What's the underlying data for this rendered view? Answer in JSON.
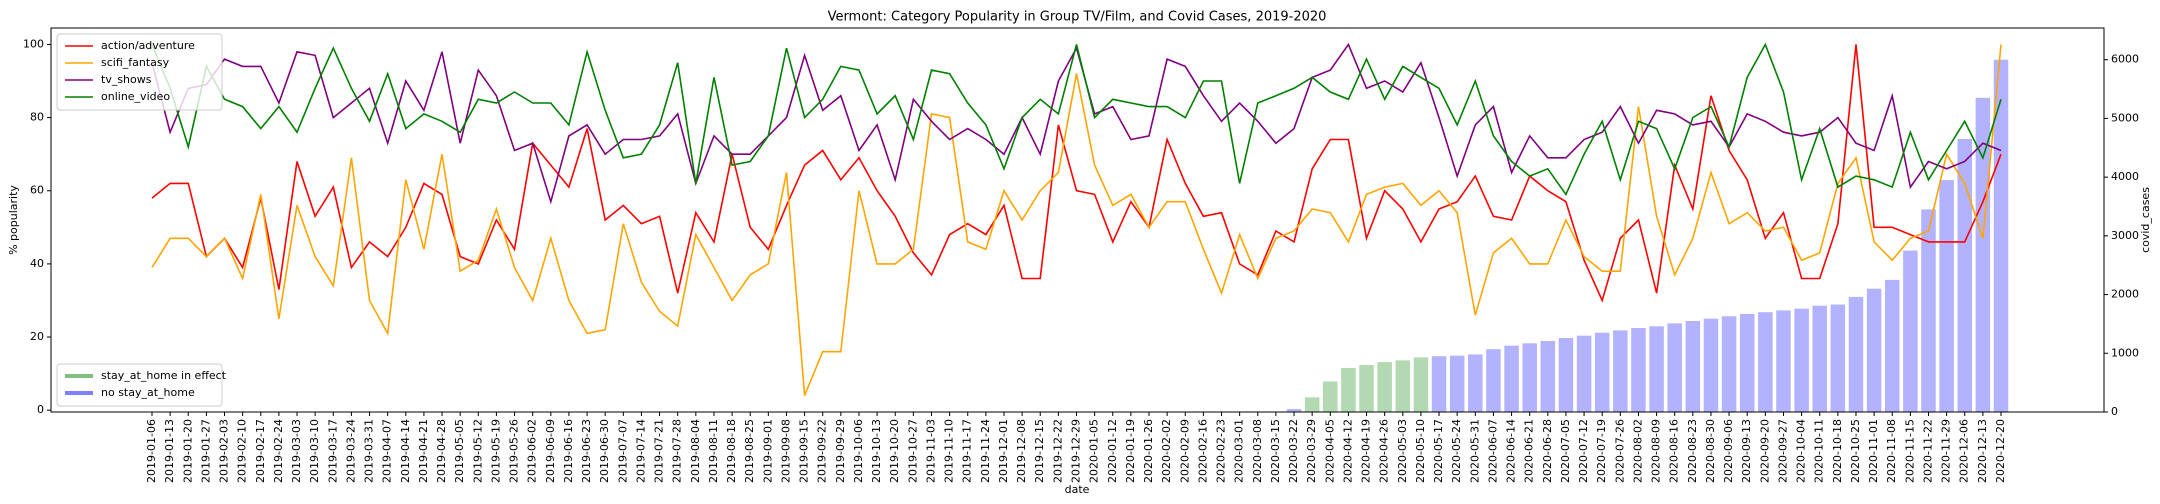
{
  "chart_data": {
    "type": "combo",
    "title": "Vermont: Category Popularity in Group TV/Film, and Covid Cases, 2019-2020",
    "x_label": "date",
    "y_label": "% popularity",
    "y2_label": "covid_cases",
    "categories": [
      "2019-01-06",
      "2019-01-13",
      "2019-01-20",
      "2019-01-27",
      "2019-02-03",
      "2019-02-10",
      "2019-02-17",
      "2019-02-24",
      "2019-03-03",
      "2019-03-10",
      "2019-03-17",
      "2019-03-24",
      "2019-03-31",
      "2019-04-07",
      "2019-04-14",
      "2019-04-21",
      "2019-04-28",
      "2019-05-05",
      "2019-05-12",
      "2019-05-19",
      "2019-05-26",
      "2019-06-02",
      "2019-06-09",
      "2019-06-16",
      "2019-06-23",
      "2019-06-30",
      "2019-07-07",
      "2019-07-14",
      "2019-07-21",
      "2019-07-28",
      "2019-08-04",
      "2019-08-11",
      "2019-08-18",
      "2019-08-25",
      "2019-09-01",
      "2019-09-08",
      "2019-09-15",
      "2019-09-22",
      "2019-09-29",
      "2019-10-06",
      "2019-10-13",
      "2019-10-20",
      "2019-10-27",
      "2019-11-03",
      "2019-11-10",
      "2019-11-17",
      "2019-11-24",
      "2019-12-01",
      "2019-12-08",
      "2019-12-15",
      "2019-12-22",
      "2019-12-29",
      "2020-01-05",
      "2020-01-12",
      "2020-01-19",
      "2020-01-26",
      "2020-02-02",
      "2020-02-09",
      "2020-02-16",
      "2020-02-23",
      "2020-03-01",
      "2020-03-08",
      "2020-03-15",
      "2020-03-22",
      "2020-03-29",
      "2020-04-05",
      "2020-04-12",
      "2020-04-19",
      "2020-04-26",
      "2020-05-03",
      "2020-05-10",
      "2020-05-17",
      "2020-05-24",
      "2020-05-31",
      "2020-06-07",
      "2020-06-14",
      "2020-06-21",
      "2020-06-28",
      "2020-07-05",
      "2020-07-12",
      "2020-07-19",
      "2020-07-26",
      "2020-08-02",
      "2020-08-09",
      "2020-08-16",
      "2020-08-23",
      "2020-08-30",
      "2020-09-06",
      "2020-09-13",
      "2020-09-20",
      "2020-09-27",
      "2020-10-04",
      "2020-10-11",
      "2020-10-18",
      "2020-10-25",
      "2020-11-01",
      "2020-11-08",
      "2020-11-15",
      "2020-11-22",
      "2020-11-29",
      "2020-12-06",
      "2020-12-13",
      "2020-12-20"
    ],
    "series": [
      {
        "name": "action/adventure",
        "color": "#ff0000",
        "values": [
          58,
          62,
          62,
          42,
          47,
          39,
          58,
          33,
          68,
          53,
          61,
          39,
          46,
          42,
          50,
          62,
          59,
          42,
          40,
          52,
          44,
          73,
          67,
          61,
          77,
          52,
          56,
          51,
          53,
          32,
          54,
          46,
          70,
          50,
          44,
          56,
          67,
          71,
          63,
          69,
          60,
          53,
          43,
          37,
          48,
          51,
          48,
          56,
          36,
          36,
          78,
          60,
          59,
          46,
          57,
          50,
          74,
          62,
          53,
          54,
          40,
          37,
          49,
          46,
          66,
          74,
          74,
          47,
          60,
          55,
          46,
          55,
          57,
          64,
          53,
          52,
          64,
          60,
          57,
          41,
          30,
          47,
          52,
          32,
          67,
          55,
          86,
          71,
          63,
          47,
          54,
          36,
          36,
          51,
          100,
          50,
          50,
          48,
          46,
          46,
          46,
          57,
          70
        ]
      },
      {
        "name": "scifi_fantasy",
        "color": "#ffa500",
        "values": [
          39,
          47,
          47,
          42,
          47,
          36,
          59,
          25,
          56,
          42,
          34,
          69,
          30,
          21,
          63,
          44,
          70,
          38,
          41,
          55,
          39,
          30,
          47,
          30,
          21,
          22,
          51,
          35,
          27,
          23,
          48,
          39,
          30,
          37,
          40,
          65,
          4,
          16,
          16,
          60,
          40,
          40,
          44,
          81,
          80,
          46,
          44,
          60,
          52,
          60,
          65,
          92,
          67,
          56,
          59,
          50,
          57,
          57,
          44,
          32,
          48,
          36,
          47,
          49,
          55,
          54,
          46,
          59,
          61,
          62,
          56,
          60,
          54,
          26,
          43,
          47,
          40,
          40,
          52,
          42,
          38,
          38,
          83,
          53,
          37,
          47,
          65,
          51,
          54,
          49,
          50,
          41,
          43,
          62,
          69,
          46,
          41,
          47,
          49,
          70,
          62,
          47,
          100
        ]
      },
      {
        "name": "tv_shows",
        "color": "#800080",
        "values": [
          95,
          76,
          88,
          89,
          96,
          94,
          94,
          84,
          98,
          97,
          80,
          84,
          88,
          73,
          90,
          82,
          98,
          73,
          93,
          86,
          71,
          73,
          57,
          75,
          78,
          70,
          74,
          74,
          75,
          81,
          62,
          75,
          70,
          70,
          75,
          80,
          97,
          82,
          86,
          71,
          78,
          63,
          85,
          79,
          74,
          77,
          74,
          70,
          80,
          70,
          90,
          99,
          81,
          83,
          74,
          75,
          96,
          94,
          86,
          79,
          84,
          79,
          73,
          77,
          91,
          93,
          100,
          88,
          90,
          87,
          95,
          80,
          64,
          78,
          83,
          65,
          75,
          69,
          69,
          74,
          76,
          83,
          73,
          82,
          81,
          78,
          79,
          72,
          81,
          79,
          76,
          75,
          76,
          80,
          73,
          71,
          86,
          61,
          68,
          66,
          68,
          73,
          71
        ]
      },
      {
        "name": "online_video",
        "color": "#008000",
        "values": [
          100,
          88,
          72,
          94,
          85,
          83,
          77,
          83,
          76,
          88,
          99,
          88,
          79,
          92,
          77,
          81,
          79,
          76,
          85,
          84,
          87,
          84,
          84,
          78,
          98,
          82,
          69,
          70,
          78,
          95,
          62,
          91,
          67,
          68,
          75,
          99,
          80,
          85,
          94,
          93,
          81,
          86,
          74,
          93,
          92,
          84,
          78,
          66,
          80,
          85,
          81,
          100,
          80,
          85,
          84,
          83,
          83,
          80,
          90,
          90,
          62,
          84,
          86,
          88,
          91,
          87,
          85,
          96,
          85,
          94,
          91,
          88,
          78,
          90,
          75,
          68,
          64,
          66,
          59,
          70,
          79,
          63,
          79,
          77,
          66,
          80,
          83,
          72,
          91,
          100,
          87,
          63,
          77,
          61,
          64,
          63,
          61,
          76,
          63,
          71,
          79,
          69,
          85
        ]
      }
    ],
    "bar_series": [
      {
        "name": "stay_at_home in effect",
        "color": "#008000",
        "axis": "y2",
        "values": [
          null,
          null,
          null,
          null,
          null,
          null,
          null,
          null,
          null,
          null,
          null,
          null,
          null,
          null,
          null,
          null,
          null,
          null,
          null,
          null,
          null,
          null,
          null,
          null,
          null,
          null,
          null,
          null,
          null,
          null,
          null,
          null,
          null,
          null,
          null,
          null,
          null,
          null,
          null,
          null,
          null,
          null,
          null,
          null,
          null,
          null,
          null,
          null,
          null,
          null,
          null,
          null,
          null,
          null,
          null,
          null,
          null,
          null,
          null,
          null,
          null,
          null,
          null,
          null,
          250,
          520,
          750,
          800,
          850,
          880,
          930,
          null,
          null,
          null,
          null,
          null,
          null,
          null,
          null,
          null,
          null,
          null,
          null,
          null,
          null,
          null,
          null,
          null,
          null,
          null,
          null,
          null,
          null,
          null,
          null,
          null,
          null,
          null,
          null,
          null,
          null,
          null,
          null
        ]
      },
      {
        "name": "no stay_at_home",
        "color": "#0000ff",
        "axis": "y2",
        "values": [
          null,
          null,
          null,
          null,
          null,
          null,
          null,
          null,
          null,
          null,
          null,
          null,
          null,
          null,
          null,
          null,
          null,
          null,
          null,
          null,
          null,
          null,
          null,
          null,
          null,
          null,
          null,
          null,
          null,
          null,
          null,
          null,
          null,
          null,
          null,
          null,
          null,
          null,
          null,
          null,
          null,
          null,
          null,
          null,
          null,
          null,
          null,
          null,
          null,
          null,
          null,
          null,
          null,
          null,
          null,
          null,
          null,
          null,
          null,
          null,
          null,
          null,
          null,
          50,
          null,
          null,
          null,
          null,
          null,
          null,
          null,
          950,
          960,
          980,
          1070,
          1130,
          1170,
          1210,
          1260,
          1300,
          1350,
          1390,
          1430,
          1460,
          1510,
          1550,
          1590,
          1630,
          1670,
          1700,
          1730,
          1760,
          1810,
          1830,
          1960,
          2100,
          2250,
          2750,
          3450,
          3950,
          4650,
          5350,
          6000
        ]
      }
    ],
    "ylim": [
      -0.5,
      104.5
    ],
    "yticks": [
      0,
      20,
      40,
      60,
      80,
      100
    ],
    "y2lim": [
      0,
      6540
    ],
    "y2ticks": [
      0,
      1000,
      2000,
      3000,
      4000,
      5000,
      6000
    ],
    "legend": "upper left",
    "bar_legend": "lower left"
  }
}
